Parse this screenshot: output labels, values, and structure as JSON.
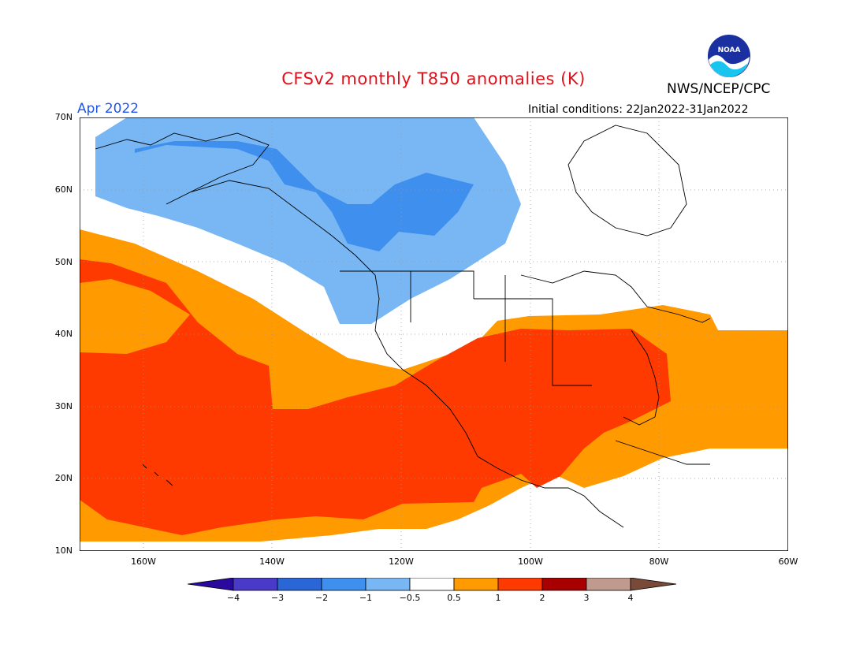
{
  "title": "CFSv2 monthly T850 anomalies (K)",
  "organization": "NWS/NCEP/CPC",
  "logo_text": "NOAA",
  "month_label": "Apr 2022",
  "initial_conditions": "Initial conditions: 22Jan2022-31Jan2022",
  "axes": {
    "y_ticks": [
      "70N",
      "60N",
      "50N",
      "40N",
      "30N",
      "20N",
      "10N"
    ],
    "x_ticks": [
      "160W",
      "140W",
      "120W",
      "100W",
      "80W",
      "60W"
    ]
  },
  "colorbar": {
    "labels": [
      "−4",
      "−3",
      "−2",
      "−1",
      "−0.5",
      "0.5",
      "1",
      "2",
      "3",
      "4"
    ],
    "colors": [
      "#2a0a9e",
      "#4a3ac8",
      "#2a66d6",
      "#3f8fef",
      "#78b7f4",
      "#ffffff",
      "#ff9a00",
      "#ff3a00",
      "#a80000",
      "#c09a8c",
      "#7a4a38"
    ]
  },
  "colors": {
    "title": "#e0101a",
    "month": "#2255ee",
    "cold_light": "#78b7f4",
    "cold_mid": "#3f8fef",
    "warm_light": "#ff9a00",
    "warm_mid": "#ff3a00"
  }
}
